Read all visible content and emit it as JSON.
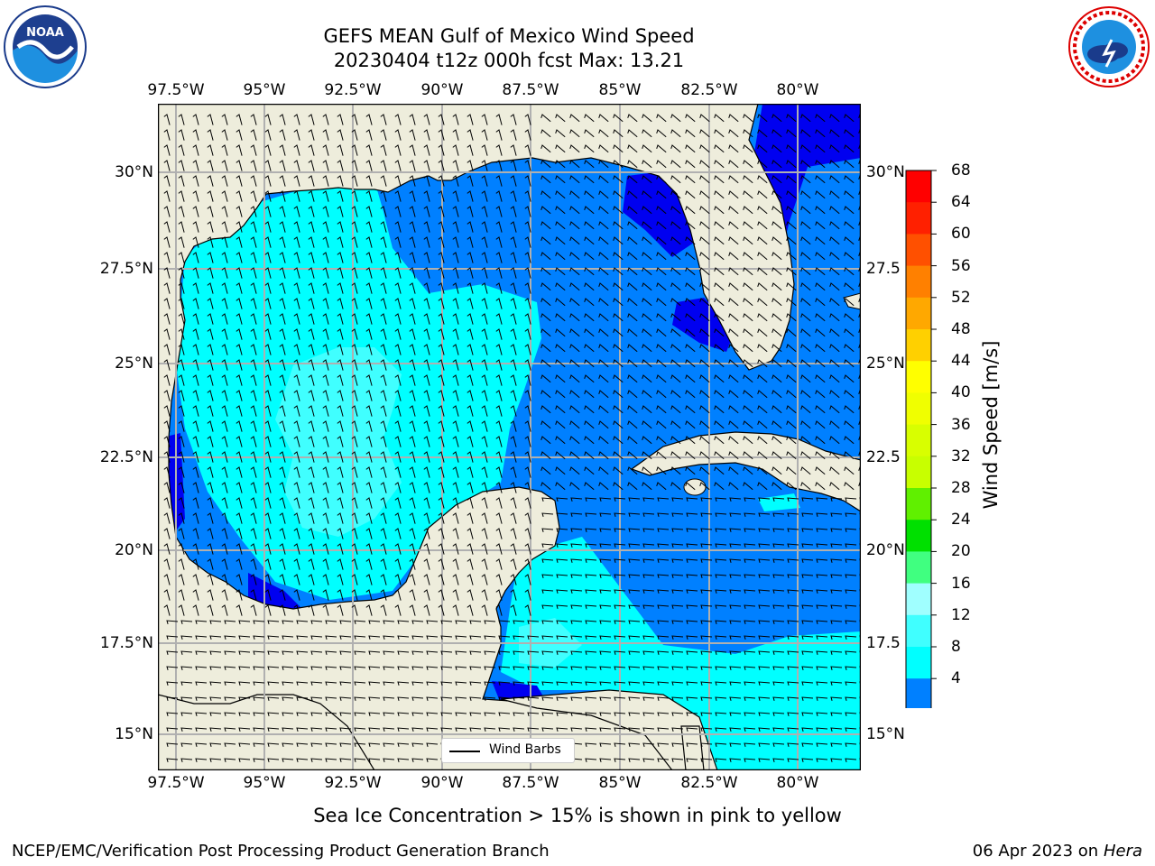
{
  "header": {
    "title_line1": "GEFS MEAN Gulf of Mexico Wind Speed",
    "title_line2": "20230404 t12z 000h fcst   Max: 13.21"
  },
  "logos": {
    "noaa_text": "NOAA",
    "noaa_ring_text": "NATIONAL OCEANIC AND ATMOSPHERIC ADMINISTRATION · U.S. DEPARTMENT OF COMMERCE",
    "nws_ring_text": "NATIONAL WEATHER SERVICE"
  },
  "map": {
    "lon_labels": [
      "97.5°W",
      "95°W",
      "92.5°W",
      "90°W",
      "87.5°W",
      "85°W",
      "82.5°W",
      "80°W"
    ],
    "lat_labels_left": [
      "30°N",
      "27.5°N",
      "25°N",
      "22.5°N",
      "20°N",
      "17.5°N",
      "15°N"
    ],
    "lat_labels_right": [
      "30°N",
      "27.5",
      "25°N",
      "22.5",
      "20°N",
      "17.5",
      "15°N"
    ],
    "legend_label": "Wind Barbs",
    "colors": {
      "land": "#EEEDDC",
      "gridline": "#B0B0B0",
      "speed_4_8": "#0080FF",
      "speed_8_12": "#00FFFF",
      "speed_12_16": "#40FFFF",
      "speed_below_4": "#0000F0"
    }
  },
  "colorbar": {
    "label": "Wind Speed [m/s]",
    "ticks": [
      "68",
      "64",
      "60",
      "56",
      "52",
      "48",
      "44",
      "40",
      "36",
      "32",
      "28",
      "24",
      "20",
      "16",
      "12",
      "8",
      "4"
    ],
    "colors_top_to_bottom": [
      "#FF0000",
      "#FF2000",
      "#FF5000",
      "#FF8000",
      "#FFA800",
      "#FFD000",
      "#FFFF00",
      "#F0FF00",
      "#D8FF00",
      "#C8FF00",
      "#60F000",
      "#00E000",
      "#40FF80",
      "#A0FFFF",
      "#40FFFF",
      "#00FFFF",
      "#0080FF"
    ],
    "extend_color": "#0000F0"
  },
  "footer": {
    "sea_ice_note": "Sea Ice Concentration > 15% is shown in pink to yellow",
    "branch": "NCEP/EMC/Verification Post Processing Product Generation Branch",
    "date": "06 Apr 2023 on ",
    "machine": "Hera"
  }
}
